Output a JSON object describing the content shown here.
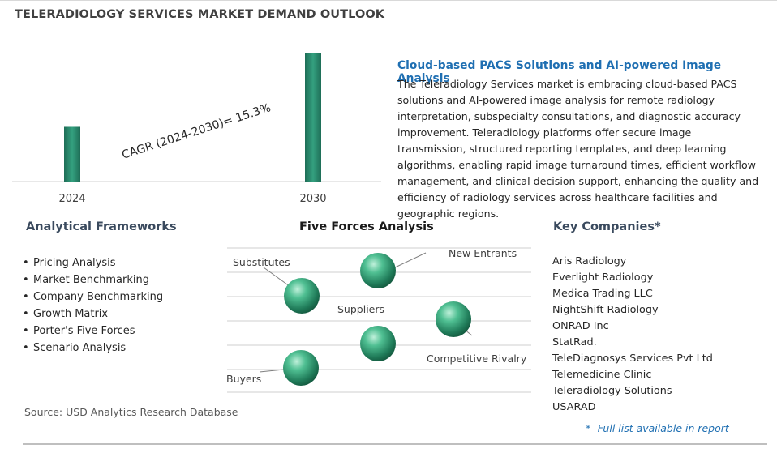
{
  "title": "TELERADIOLOGY SERVICES MARKET DEMAND OUTLOOK",
  "chart_data": {
    "type": "bar",
    "categories": [
      "2024",
      "2030"
    ],
    "values": [
      1.0,
      2.34
    ],
    "annotation": "CAGR (2024-2030)=  15.3%",
    "bar_color": "#2e8b6e"
  },
  "description": {
    "title": "Cloud-based PACS Solutions and AI-powered Image Analysis",
    "body": "The Teleradiology Services market is embracing cloud-based PACS solutions and AI-powered image analysis for remote radiology interpretation, subspecialty consultations, and diagnostic accuracy improvement. Teleradiology platforms offer secure image transmission, structured reporting templates, and deep learning algorithms, enabling rapid image turnaround times, efficient workflow management, and clinical decision support, enhancing the quality and efficiency of radiology services across healthcare facilities and geographic regions."
  },
  "frameworks": {
    "heading": "Analytical Frameworks",
    "items": [
      "Pricing Analysis",
      "Market Benchmarking",
      "Company Benchmarking",
      "Growth Matrix",
      "Porter's Five Forces",
      "Scenario Analysis"
    ]
  },
  "five_forces": {
    "heading": "Five Forces Analysis",
    "labels": {
      "substitutes": "Substitutes",
      "new_entrants": "New Entrants",
      "suppliers": "Suppliers",
      "competitive_rivalry": "Competitive Rivalry",
      "buyers": "Buyers"
    }
  },
  "companies": {
    "heading": "Key Companies*",
    "items": [
      "Aris Radiology",
      "Everlight Radiology",
      "Medica Trading LLC",
      "NightShift Radiology",
      "ONRAD Inc",
      "StatRad.",
      "TeleDiagnosys Services Pvt Ltd",
      "Telemedicine Clinic",
      "Teleradiology Solutions",
      "USARAD"
    ],
    "footnote": "*- Full list available in report"
  },
  "source": "Source: USD Analytics Research Database"
}
